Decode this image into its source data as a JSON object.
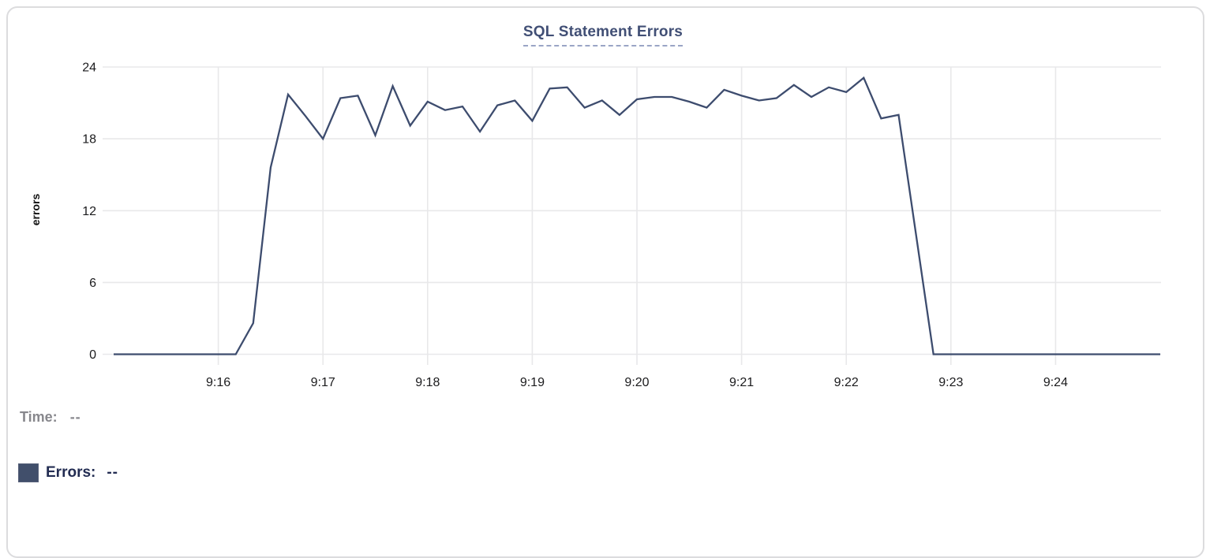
{
  "chart_data": {
    "type": "line",
    "title": "SQL Statement Errors",
    "xlabel": "",
    "ylabel": "errors",
    "ylim": [
      0,
      24
    ],
    "y_ticks": [
      0,
      6,
      12,
      18,
      24
    ],
    "x_ticks": [
      {
        "t": 60,
        "label": "9:16"
      },
      {
        "t": 120,
        "label": "9:17"
      },
      {
        "t": 180,
        "label": "9:18"
      },
      {
        "t": 240,
        "label": "9:19"
      },
      {
        "t": 300,
        "label": "9:20"
      },
      {
        "t": 360,
        "label": "9:21"
      },
      {
        "t": 420,
        "label": "9:22"
      },
      {
        "t": 480,
        "label": "9:23"
      },
      {
        "t": 540,
        "label": "9:24"
      }
    ],
    "time_window": {
      "start": "9:15:00",
      "end": "9:25:00"
    },
    "grid": true,
    "legend_position": "bottom-left",
    "series": [
      {
        "name": "Errors",
        "color": "#3d4c6e",
        "sample_interval_seconds": 10,
        "points": [
          [
            0,
            0
          ],
          [
            10,
            0
          ],
          [
            20,
            0
          ],
          [
            30,
            0
          ],
          [
            40,
            0
          ],
          [
            50,
            0
          ],
          [
            60,
            0
          ],
          [
            70,
            0
          ],
          [
            80,
            2.6
          ],
          [
            90,
            15.6
          ],
          [
            100,
            21.7
          ],
          [
            110,
            19.9
          ],
          [
            120,
            18.0
          ],
          [
            130,
            21.4
          ],
          [
            140,
            21.6
          ],
          [
            150,
            18.3
          ],
          [
            160,
            22.4
          ],
          [
            170,
            19.1
          ],
          [
            180,
            21.1
          ],
          [
            190,
            20.4
          ],
          [
            200,
            20.7
          ],
          [
            210,
            18.6
          ],
          [
            220,
            20.8
          ],
          [
            230,
            21.2
          ],
          [
            240,
            19.5
          ],
          [
            250,
            22.2
          ],
          [
            260,
            22.3
          ],
          [
            270,
            20.6
          ],
          [
            280,
            21.2
          ],
          [
            290,
            20.0
          ],
          [
            300,
            21.3
          ],
          [
            310,
            21.5
          ],
          [
            320,
            21.5
          ],
          [
            330,
            21.1
          ],
          [
            340,
            20.6
          ],
          [
            350,
            22.1
          ],
          [
            360,
            21.6
          ],
          [
            370,
            21.2
          ],
          [
            380,
            21.4
          ],
          [
            390,
            22.5
          ],
          [
            400,
            21.5
          ],
          [
            410,
            22.3
          ],
          [
            420,
            21.9
          ],
          [
            430,
            23.1
          ],
          [
            440,
            19.7
          ],
          [
            450,
            20.0
          ],
          [
            460,
            10.0
          ],
          [
            470,
            0
          ],
          [
            480,
            0
          ],
          [
            490,
            0
          ],
          [
            500,
            0
          ],
          [
            510,
            0
          ],
          [
            520,
            0
          ],
          [
            530,
            0
          ],
          [
            540,
            0
          ],
          [
            550,
            0
          ],
          [
            560,
            0
          ],
          [
            570,
            0
          ],
          [
            580,
            0
          ],
          [
            590,
            0
          ],
          [
            600,
            0
          ]
        ]
      }
    ]
  },
  "legend": {
    "time_label": "Time:",
    "time_value": "--",
    "errors_label": "Errors:",
    "errors_value": "--"
  },
  "colors": {
    "line": "#3d4c6e",
    "title": "#414f75",
    "title_underline": "#9aa5c6",
    "grid": "#e8e8ea",
    "axis_labels": "#1b1b1d",
    "legend_time": "#87878c",
    "legend_errors": "#222c52",
    "errors_swatch": "#414f6b",
    "card_border": "#dcdcde"
  }
}
